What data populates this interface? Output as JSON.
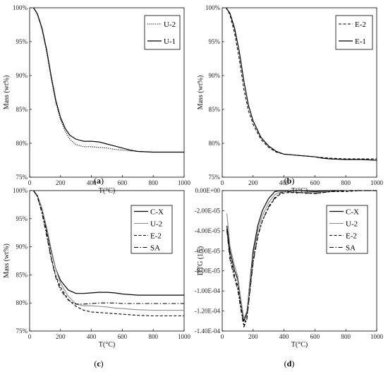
{
  "chart_data": [
    {
      "panel": "(a)",
      "type": "line",
      "xlabel": "T(°C)",
      "ylabel": "Mass (wt%)",
      "xlim": [
        0,
        1000
      ],
      "ylim": [
        75,
        100
      ],
      "xticks": [
        "0",
        "200",
        "400",
        "600",
        "800",
        "1000"
      ],
      "yticks": [
        "75%",
        "80%",
        "85%",
        "90%",
        "95%",
        "100%"
      ],
      "legend_position": "top-right",
      "series": [
        {
          "name": "U-2",
          "style": "dotted",
          "x": [
            25,
            50,
            80,
            110,
            140,
            170,
            200,
            230,
            260,
            300,
            350,
            400,
            450,
            500,
            550,
            600,
            650,
            700,
            800,
            900,
            1000
          ],
          "y": [
            100,
            99.0,
            96.8,
            93.5,
            89.5,
            86.0,
            83.5,
            81.8,
            80.6,
            79.8,
            79.5,
            79.5,
            79.4,
            79.3,
            79.1,
            79.0,
            78.9,
            78.8,
            78.7,
            78.7,
            78.7
          ]
        },
        {
          "name": "U-1",
          "style": "solid",
          "x": [
            25,
            50,
            80,
            110,
            140,
            170,
            200,
            230,
            260,
            300,
            350,
            400,
            450,
            500,
            550,
            600,
            650,
            700,
            800,
            900,
            1000
          ],
          "y": [
            100,
            99.1,
            97.0,
            93.8,
            89.8,
            86.3,
            83.8,
            82.2,
            81.2,
            80.6,
            80.3,
            80.3,
            80.2,
            79.9,
            79.6,
            79.3,
            79.0,
            78.8,
            78.7,
            78.7,
            78.7
          ]
        }
      ]
    },
    {
      "panel": "(b)",
      "type": "line",
      "xlabel": "T(°C)",
      "ylabel": "Mass (wt%)",
      "xlim": [
        0,
        1000
      ],
      "ylim": [
        75,
        100
      ],
      "xticks": [
        "0",
        "200",
        "400",
        "600",
        "800",
        "1000"
      ],
      "yticks": [
        "75%",
        "80%",
        "85%",
        "90%",
        "95%",
        "100%"
      ],
      "legend_position": "top-right",
      "series": [
        {
          "name": "E-2",
          "style": "dashed",
          "x": [
            25,
            50,
            80,
            110,
            140,
            170,
            200,
            250,
            300,
            350,
            400,
            450,
            500,
            550,
            600,
            650,
            700,
            800,
            900,
            1000
          ],
          "y": [
            100,
            99.0,
            96.3,
            92.5,
            88.0,
            84.8,
            82.8,
            80.6,
            79.4,
            78.7,
            78.4,
            78.3,
            78.2,
            78.1,
            78.0,
            77.9,
            77.8,
            77.7,
            77.7,
            77.7
          ]
        },
        {
          "name": "E-1",
          "style": "solid",
          "x": [
            25,
            50,
            80,
            110,
            140,
            170,
            200,
            250,
            300,
            350,
            400,
            450,
            500,
            550,
            600,
            650,
            700,
            800,
            900,
            1000
          ],
          "y": [
            100,
            99.2,
            97.0,
            93.6,
            89.2,
            85.6,
            83.3,
            80.9,
            79.6,
            78.8,
            78.4,
            78.3,
            78.2,
            78.1,
            78.0,
            77.8,
            77.7,
            77.6,
            77.6,
            77.5
          ]
        }
      ]
    },
    {
      "panel": "(c)",
      "type": "line",
      "xlabel": "T(°C)",
      "ylabel": "Mass (wt%)",
      "xlim": [
        0,
        1000
      ],
      "ylim": [
        75,
        100
      ],
      "xticks": [
        "0",
        "200",
        "400",
        "600",
        "800",
        "1000"
      ],
      "yticks": [
        "75%",
        "80%",
        "85%",
        "90%",
        "95%",
        "100%"
      ],
      "legend_position": "top-right",
      "series": [
        {
          "name": "C-X",
          "style": "solid",
          "x": [
            25,
            50,
            80,
            110,
            140,
            170,
            200,
            250,
            300,
            350,
            400,
            450,
            500,
            550,
            600,
            700,
            800,
            900,
            1000
          ],
          "y": [
            100,
            99.1,
            96.8,
            93.2,
            89.2,
            86.0,
            84.0,
            82.3,
            81.7,
            81.7,
            81.8,
            81.9,
            81.9,
            81.8,
            81.6,
            81.4,
            81.4,
            81.4,
            81.4
          ]
        },
        {
          "name": "U-2",
          "style": "solid-gray",
          "x": [
            25,
            50,
            80,
            110,
            140,
            170,
            200,
            250,
            300,
            350,
            400,
            450,
            500,
            550,
            600,
            700,
            800,
            900,
            1000
          ],
          "y": [
            100,
            99.0,
            96.8,
            93.5,
            89.5,
            86.0,
            83.5,
            81.2,
            79.8,
            79.5,
            79.5,
            79.4,
            79.3,
            79.1,
            79.0,
            78.8,
            78.7,
            78.7,
            78.7
          ]
        },
        {
          "name": "E-2",
          "style": "dashed",
          "x": [
            25,
            50,
            80,
            110,
            140,
            170,
            200,
            250,
            300,
            350,
            400,
            450,
            500,
            550,
            600,
            700,
            800,
            900,
            1000
          ],
          "y": [
            100,
            99.0,
            96.3,
            92.5,
            88.0,
            84.8,
            82.8,
            80.6,
            79.4,
            78.7,
            78.4,
            78.3,
            78.2,
            78.1,
            78.0,
            77.8,
            77.7,
            77.7,
            77.7
          ]
        },
        {
          "name": "SA",
          "style": "dashdot",
          "x": [
            25,
            50,
            80,
            110,
            140,
            170,
            200,
            250,
            300,
            350,
            400,
            450,
            500,
            550,
            600,
            700,
            800,
            900,
            1000
          ],
          "y": [
            100,
            98.9,
            96.0,
            92.0,
            87.8,
            84.5,
            82.3,
            80.5,
            79.8,
            79.8,
            79.9,
            80.0,
            80.0,
            80.0,
            79.9,
            79.9,
            79.9,
            79.9,
            79.9
          ]
        }
      ]
    },
    {
      "panel": "(d)",
      "type": "line",
      "xlabel": "T(°C)",
      "ylabel": "DTG (1/s)",
      "xlim": [
        0,
        1000
      ],
      "ylim": [
        -0.00014,
        0
      ],
      "xticks": [
        "0",
        "200",
        "400",
        "600",
        "800",
        "1000"
      ],
      "yticks": [
        "-1.40E-04",
        "-1.20E-04",
        "-1.00E-04",
        "-8.00E-05",
        "-6.00E-05",
        "-4.00E-05",
        "-2.00E-05",
        "0.00E+00"
      ],
      "legend_position": "top-right",
      "series": [
        {
          "name": "C-X",
          "style": "solid",
          "x": [
            30,
            50,
            80,
            100,
            120,
            140,
            160,
            180,
            200,
            230,
            260,
            300,
            340,
            380,
            420,
            500,
            600,
            700,
            800,
            900,
            1000
          ],
          "y": [
            -3.5e-05,
            -6e-05,
            -8e-05,
            -8.8e-05,
            -0.00011,
            -0.00013,
            -0.000122,
            -9e-05,
            -6e-05,
            -3.5e-05,
            -2e-05,
            -8e-06,
            -1e-06,
            0,
            0,
            0,
            -1e-06,
            0,
            0,
            0,
            0
          ]
        },
        {
          "name": "U-2",
          "style": "solid-gray",
          "x": [
            30,
            50,
            80,
            100,
            120,
            140,
            160,
            180,
            200,
            230,
            260,
            300,
            340,
            380,
            420,
            500,
            600,
            700,
            800,
            900,
            1000
          ],
          "y": [
            -2.3e-05,
            -5.5e-05,
            -7.5e-05,
            -8.5e-05,
            -0.000108,
            -0.000128,
            -0.00012,
            -9.2e-05,
            -6.5e-05,
            -4e-05,
            -2.5e-05,
            -1.2e-05,
            -4e-06,
            -1e-06,
            -1e-06,
            -2e-06,
            -2e-06,
            -1e-06,
            0,
            0,
            0
          ]
        },
        {
          "name": "E-2",
          "style": "dashed",
          "x": [
            30,
            50,
            80,
            100,
            120,
            140,
            160,
            180,
            200,
            230,
            260,
            300,
            340,
            380,
            420,
            500,
            600,
            700,
            800,
            900,
            1000
          ],
          "y": [
            -3.8e-05,
            -6.5e-05,
            -8.5e-05,
            -9.5e-05,
            -0.000115,
            -0.000134,
            -0.000126,
            -9.8e-05,
            -7e-05,
            -4.5e-05,
            -3e-05,
            -1.7e-05,
            -8e-06,
            -3e-06,
            -2e-06,
            -2e-06,
            -3e-06,
            -1e-06,
            -1e-06,
            0,
            0
          ]
        },
        {
          "name": "SA",
          "style": "dashdot",
          "x": [
            30,
            50,
            80,
            100,
            120,
            140,
            160,
            180,
            200,
            230,
            260,
            300,
            340,
            380,
            420,
            500,
            600,
            700,
            800,
            900,
            1000
          ],
          "y": [
            -4e-05,
            -6.8e-05,
            -8.8e-05,
            -9.8e-05,
            -0.000118,
            -0.000136,
            -0.000128,
            -0.0001,
            -7.2e-05,
            -4.6e-05,
            -3e-05,
            -1.6e-05,
            -7e-06,
            -2e-06,
            -1e-06,
            -2e-06,
            -3e-06,
            -1e-06,
            0,
            0,
            0
          ]
        }
      ]
    }
  ]
}
